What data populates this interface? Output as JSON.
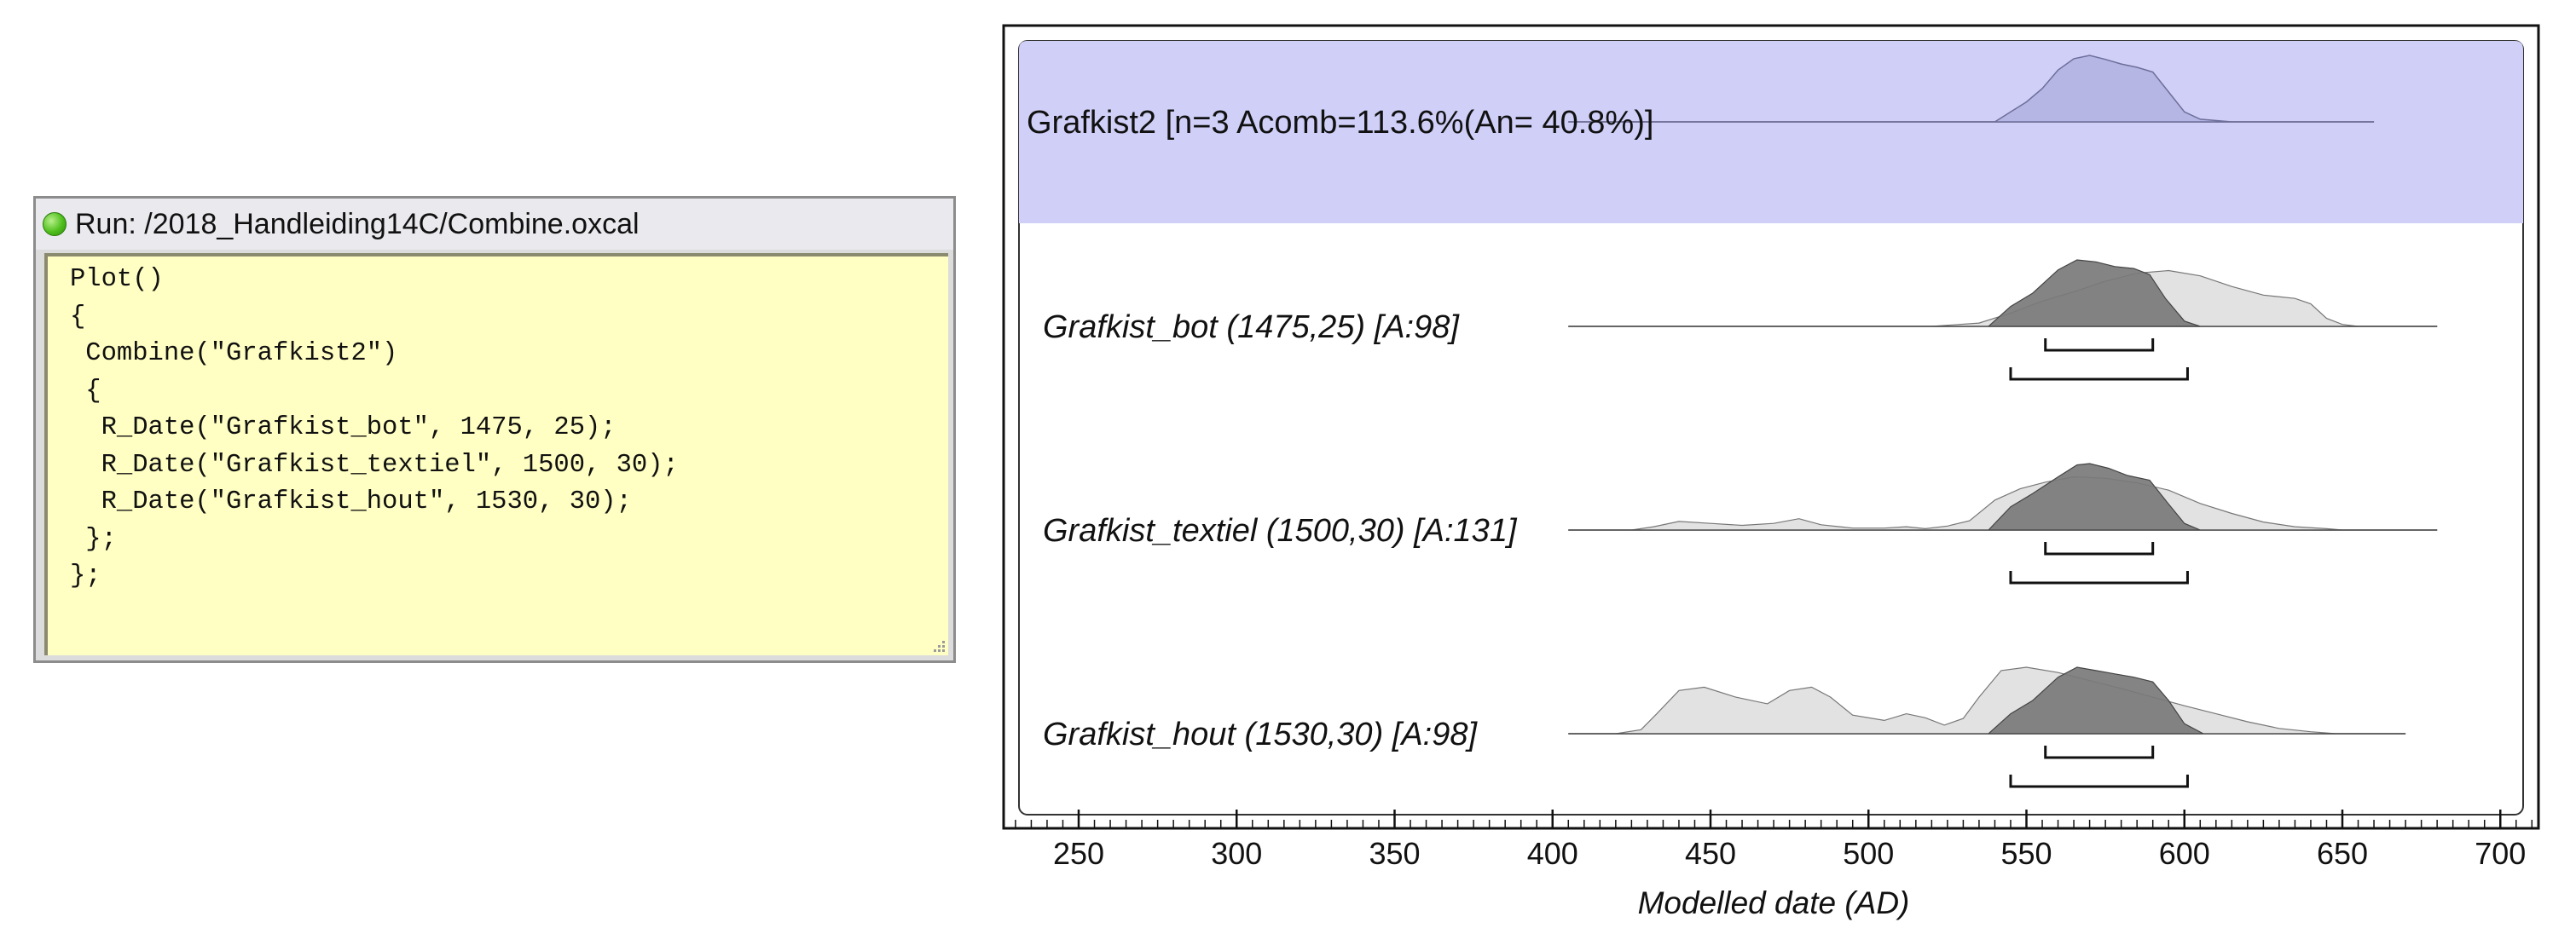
{
  "run_window": {
    "title": "Run: /2018_Handleiding14C/Combine.oxcal",
    "code_lines": [
      "Plot()",
      "{",
      " Combine(\"Grafkist2\")",
      " {",
      "  R_Date(\"Grafkist_bot\", 1475, 25);",
      "  R_Date(\"Grafkist_textiel\", 1500, 30);",
      "  R_Date(\"Grafkist_hout\", 1530, 30);",
      " };",
      "};"
    ]
  },
  "chart_data": {
    "type": "area",
    "xlabel": "Modelled date (AD)",
    "xlim": [
      230,
      710
    ],
    "x_ticks": [
      250,
      300,
      350,
      400,
      450,
      500,
      550,
      600,
      650,
      700
    ],
    "minor_tick_step": 5,
    "combine": {
      "label": "Grafkist2 [n=3 Acomb=113.6%(An= 40.8%)]",
      "highlight_color": "#cfcff8",
      "fill_color": "#b6b6e4",
      "line_range": [
        405,
        660
      ],
      "curve": [
        [
          405,
          0
        ],
        [
          540,
          0
        ],
        [
          545,
          0.15
        ],
        [
          550,
          0.3
        ],
        [
          555,
          0.5
        ],
        [
          560,
          0.78
        ],
        [
          565,
          0.95
        ],
        [
          570,
          1.0
        ],
        [
          575,
          0.94
        ],
        [
          580,
          0.87
        ],
        [
          585,
          0.82
        ],
        [
          590,
          0.75
        ],
        [
          595,
          0.45
        ],
        [
          600,
          0.15
        ],
        [
          605,
          0.04
        ],
        [
          615,
          0
        ],
        [
          660,
          0
        ]
      ]
    },
    "dates": [
      {
        "label": "Grafkist_bot (1475,25) [A:98]",
        "line_range": [
          405,
          680
        ],
        "prior": [
          [
            405,
            0
          ],
          [
            520,
            0
          ],
          [
            535,
            0.05
          ],
          [
            545,
            0.2
          ],
          [
            555,
            0.38
          ],
          [
            565,
            0.52
          ],
          [
            575,
            0.68
          ],
          [
            585,
            0.8
          ],
          [
            595,
            0.84
          ],
          [
            605,
            0.76
          ],
          [
            615,
            0.6
          ],
          [
            625,
            0.47
          ],
          [
            635,
            0.42
          ],
          [
            640,
            0.34
          ],
          [
            645,
            0.12
          ],
          [
            650,
            0.03
          ],
          [
            655,
            0
          ],
          [
            680,
            0
          ]
        ],
        "posterior": [
          [
            405,
            0
          ],
          [
            538,
            0
          ],
          [
            545,
            0.3
          ],
          [
            552,
            0.5
          ],
          [
            560,
            0.85
          ],
          [
            566,
            1.0
          ],
          [
            572,
            0.97
          ],
          [
            578,
            0.9
          ],
          [
            584,
            0.87
          ],
          [
            589,
            0.78
          ],
          [
            594,
            0.42
          ],
          [
            600,
            0.08
          ],
          [
            605,
            0
          ],
          [
            680,
            0
          ]
        ],
        "range_inner": [
          556,
          590
        ],
        "range_outer": [
          545,
          601
        ]
      },
      {
        "label": "Grafkist_textiel (1500,30) [A:131]",
        "line_range": [
          405,
          680
        ],
        "prior": [
          [
            405,
            0
          ],
          [
            425,
            0
          ],
          [
            432,
            0.05
          ],
          [
            440,
            0.13
          ],
          [
            450,
            0.1
          ],
          [
            460,
            0.07
          ],
          [
            470,
            0.1
          ],
          [
            478,
            0.17
          ],
          [
            485,
            0.08
          ],
          [
            495,
            0.03
          ],
          [
            505,
            0.03
          ],
          [
            512,
            0.05
          ],
          [
            518,
            0.02
          ],
          [
            525,
            0.06
          ],
          [
            532,
            0.14
          ],
          [
            540,
            0.45
          ],
          [
            548,
            0.62
          ],
          [
            556,
            0.72
          ],
          [
            565,
            0.8
          ],
          [
            575,
            0.78
          ],
          [
            585,
            0.71
          ],
          [
            595,
            0.6
          ],
          [
            605,
            0.4
          ],
          [
            615,
            0.25
          ],
          [
            625,
            0.12
          ],
          [
            635,
            0.05
          ],
          [
            645,
            0.02
          ],
          [
            650,
            0
          ],
          [
            680,
            0
          ]
        ],
        "posterior": [
          [
            405,
            0
          ],
          [
            538,
            0
          ],
          [
            545,
            0.35
          ],
          [
            552,
            0.55
          ],
          [
            560,
            0.8
          ],
          [
            566,
            0.98
          ],
          [
            570,
            1.0
          ],
          [
            576,
            0.93
          ],
          [
            582,
            0.82
          ],
          [
            589,
            0.75
          ],
          [
            594,
            0.45
          ],
          [
            600,
            0.1
          ],
          [
            605,
            0
          ],
          [
            680,
            0
          ]
        ],
        "range_inner": [
          556,
          590
        ],
        "range_outer": [
          545,
          601
        ]
      },
      {
        "label": "Grafkist_hout (1530,30) [A:98]",
        "line_range": [
          405,
          670
        ],
        "prior": [
          [
            405,
            0
          ],
          [
            420,
            0
          ],
          [
            428,
            0.06
          ],
          [
            433,
            0.3
          ],
          [
            440,
            0.65
          ],
          [
            448,
            0.7
          ],
          [
            458,
            0.55
          ],
          [
            468,
            0.45
          ],
          [
            475,
            0.65
          ],
          [
            482,
            0.7
          ],
          [
            488,
            0.55
          ],
          [
            495,
            0.28
          ],
          [
            505,
            0.2
          ],
          [
            512,
            0.3
          ],
          [
            518,
            0.24
          ],
          [
            524,
            0.13
          ],
          [
            530,
            0.23
          ],
          [
            535,
            0.55
          ],
          [
            542,
            0.95
          ],
          [
            550,
            1.0
          ],
          [
            560,
            0.92
          ],
          [
            570,
            0.8
          ],
          [
            580,
            0.68
          ],
          [
            590,
            0.55
          ],
          [
            600,
            0.42
          ],
          [
            610,
            0.3
          ],
          [
            620,
            0.18
          ],
          [
            630,
            0.08
          ],
          [
            640,
            0.03
          ],
          [
            648,
            0
          ],
          [
            670,
            0
          ]
        ],
        "posterior": [
          [
            405,
            0
          ],
          [
            538,
            0
          ],
          [
            545,
            0.3
          ],
          [
            552,
            0.5
          ],
          [
            560,
            0.85
          ],
          [
            566,
            1.0
          ],
          [
            572,
            0.95
          ],
          [
            578,
            0.9
          ],
          [
            584,
            0.85
          ],
          [
            590,
            0.78
          ],
          [
            595,
            0.5
          ],
          [
            600,
            0.15
          ],
          [
            606,
            0
          ],
          [
            670,
            0
          ]
        ],
        "range_inner": [
          556,
          590
        ],
        "range_outer": [
          545,
          601
        ]
      }
    ],
    "colors": {
      "prior": "#e2e2e2",
      "posterior": "#7a7a7a",
      "outline": "#5a5a5a",
      "border": "#111111"
    }
  }
}
